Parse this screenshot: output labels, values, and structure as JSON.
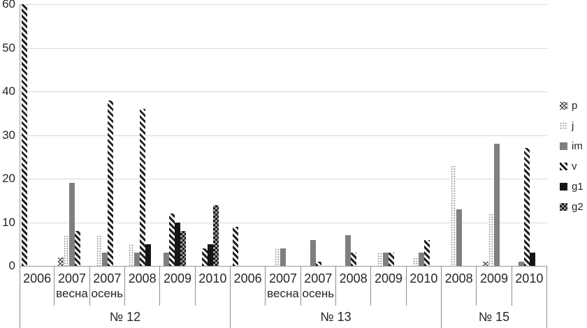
{
  "chart_data": {
    "type": "bar",
    "title": "",
    "xlabel": "",
    "ylabel": "",
    "y_axis": {
      "min": 0,
      "max": 60,
      "step": 10,
      "tick_labels": [
        "0",
        "10",
        "20",
        "30",
        "40",
        "50",
        "60"
      ]
    },
    "grid": "horizontal",
    "legend_position": "right",
    "legend": [
      {
        "id": "p",
        "label": "p"
      },
      {
        "id": "j",
        "label": "j"
      },
      {
        "id": "im",
        "label": "im"
      },
      {
        "id": "v",
        "label": "v"
      },
      {
        "id": "g1",
        "label": "g1"
      },
      {
        "id": "g2",
        "label": "g2"
      }
    ],
    "groups": [
      {
        "label": "№ 12",
        "cells": [
          {
            "year": "2006",
            "sub": "",
            "align": "left",
            "bars": [
              {
                "series": "v",
                "value": 60
              }
            ]
          },
          {
            "year": "2007",
            "sub": "весна",
            "bars": [
              {
                "series": "p",
                "value": 2
              },
              {
                "series": "j",
                "value": 7
              },
              {
                "series": "im",
                "value": 19
              },
              {
                "series": "v",
                "value": 8
              }
            ]
          },
          {
            "year": "2007",
            "sub": "осень",
            "bars": [
              {
                "series": "j",
                "value": 7
              },
              {
                "series": "im",
                "value": 3
              },
              {
                "series": "v",
                "value": 38
              }
            ]
          },
          {
            "year": "2008",
            "sub": "",
            "bars": [
              {
                "series": "j",
                "value": 5
              },
              {
                "series": "im",
                "value": 3
              },
              {
                "series": "v",
                "value": 36
              },
              {
                "series": "g1",
                "value": 5
              }
            ]
          },
          {
            "year": "2009",
            "sub": "",
            "bars": [
              {
                "series": "im",
                "value": 3
              },
              {
                "series": "v",
                "value": 12
              },
              {
                "series": "g1",
                "value": 10
              },
              {
                "series": "g2",
                "value": 8
              }
            ]
          },
          {
            "year": "2010",
            "sub": "",
            "bars": [
              {
                "series": "v",
                "value": 4
              },
              {
                "series": "g1",
                "value": 5
              },
              {
                "series": "g2",
                "value": 14
              }
            ]
          }
        ]
      },
      {
        "label": "№ 13",
        "cells": [
          {
            "year": "2006",
            "sub": "",
            "align": "left",
            "bars": [
              {
                "series": "v",
                "value": 9
              }
            ]
          },
          {
            "year": "2007",
            "sub": "весна",
            "bars": [
              {
                "series": "j",
                "value": 4
              },
              {
                "series": "im",
                "value": 4
              }
            ]
          },
          {
            "year": "2007",
            "sub": "осень",
            "bars": [
              {
                "series": "im",
                "value": 6
              },
              {
                "series": "v",
                "value": 1
              }
            ]
          },
          {
            "year": "2008",
            "sub": "",
            "bars": [
              {
                "series": "im",
                "value": 7
              },
              {
                "series": "v",
                "value": 3
              }
            ]
          },
          {
            "year": "2009",
            "sub": "",
            "bars": [
              {
                "series": "j",
                "value": 3
              },
              {
                "series": "im",
                "value": 3
              },
              {
                "series": "v",
                "value": 3
              }
            ]
          },
          {
            "year": "2010",
            "sub": "",
            "bars": [
              {
                "series": "j",
                "value": 2
              },
              {
                "series": "im",
                "value": 3
              },
              {
                "series": "v",
                "value": 6
              }
            ]
          }
        ]
      },
      {
        "label": "№ 15",
        "cells": [
          {
            "year": "2008",
            "sub": "",
            "bars": [
              {
                "series": "j",
                "value": 23
              },
              {
                "series": "im",
                "value": 13
              }
            ]
          },
          {
            "year": "2009",
            "sub": "",
            "bars": [
              {
                "series": "p",
                "value": 1
              },
              {
                "series": "j",
                "value": 12
              },
              {
                "series": "im",
                "value": 28
              }
            ]
          },
          {
            "year": "2010",
            "sub": "",
            "bars": [
              {
                "series": "im",
                "value": 1
              },
              {
                "series": "v",
                "value": 27
              },
              {
                "series": "g1",
                "value": 3
              }
            ]
          }
        ]
      }
    ]
  },
  "colors": {
    "im_gray": "#7f7f7f",
    "black": "#161616",
    "light_dot_gray": "#9e9e9e",
    "checker_gray": "#9a9a9a",
    "gridline": "#d9d9d9",
    "table_border": "#8c8c8c",
    "text": "#262626"
  }
}
